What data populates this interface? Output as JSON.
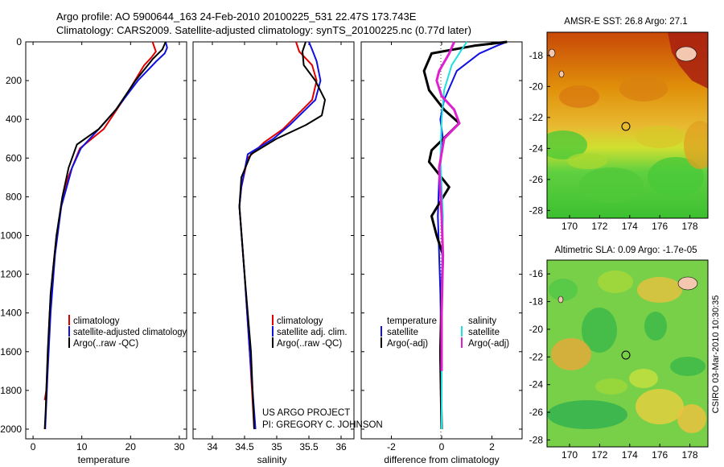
{
  "header": {
    "line1": "Argo profile: AO 5900644_163 24-Feb-2010 20100225_531 22.47S 173.743E",
    "line2": "Climatology: CARS2009. Satellite-adjusted climatology: synTS_20100225.nc (0.77d later)"
  },
  "colors": {
    "climatology": "#e00000",
    "satellite": "#1010e0",
    "argo": "#000000",
    "argo_adj": "#e020d0",
    "sal_satellite": "#20e0e0"
  },
  "chart_data": [
    {
      "type": "line",
      "title": "",
      "xlabel": "temperature",
      "ylabel": "",
      "xlim": [
        -1.5,
        31.5
      ],
      "ylim": [
        2050,
        0
      ],
      "xticks": [
        "0",
        "10",
        "20",
        "30"
      ],
      "yticks": [
        "0",
        "200",
        "400",
        "600",
        "800",
        "1000",
        "1200",
        "1400",
        "1600",
        "1800",
        "2000"
      ],
      "legend": [
        "climatology",
        "satellite-adjusted climatology",
        "Argo(..raw -QC)"
      ],
      "series": [
        {
          "name": "climatology",
          "x": [
            24.5,
            25.2,
            24.3,
            22.8,
            18.5,
            14.5,
            9.6,
            7.2,
            5.8,
            4.8,
            4.0,
            3.4,
            2.7,
            2.4
          ],
          "y": [
            0,
            50,
            80,
            120,
            300,
            450,
            550,
            700,
            850,
            1000,
            1200,
            1400,
            1800,
            1850
          ]
        },
        {
          "name": "satellite",
          "x": [
            27.2,
            27.5,
            27.0,
            25.3,
            21.5,
            17.0,
            13.5,
            9.8,
            8.0,
            5.8,
            4.5,
            3.6,
            3.0,
            2.5
          ],
          "y": [
            0,
            30,
            60,
            100,
            200,
            350,
            450,
            550,
            650,
            850,
            1100,
            1400,
            1700,
            2000
          ]
        },
        {
          "name": "argo",
          "x": [
            27.2,
            26.5,
            24.5,
            21.0,
            17.0,
            13.5,
            9.0,
            7.3,
            6.0,
            4.8,
            3.6,
            3.0,
            2.6,
            2.4
          ],
          "y": [
            0,
            40,
            90,
            200,
            350,
            450,
            530,
            650,
            800,
            1000,
            1300,
            1600,
            1900,
            2000
          ]
        }
      ]
    },
    {
      "type": "line",
      "title": "",
      "xlabel": "salinity",
      "ylabel": "",
      "xlim": [
        33.7,
        36.2
      ],
      "ylim": [
        2050,
        0
      ],
      "xticks": [
        "34",
        "34.5",
        "35",
        "35.5",
        "36"
      ],
      "legend": [
        "climatology",
        "satellite adj. clim.",
        "Argo(..raw -QC)"
      ],
      "series": [
        {
          "name": "climatology",
          "x": [
            35.3,
            35.35,
            35.55,
            35.62,
            35.55,
            35.1,
            34.8,
            34.55,
            34.45,
            34.42,
            34.5,
            34.58,
            34.65
          ],
          "y": [
            0,
            50,
            120,
            200,
            300,
            450,
            520,
            600,
            750,
            850,
            1200,
            1600,
            2000
          ]
        },
        {
          "name": "satellite",
          "x": [
            35.5,
            35.55,
            35.62,
            35.68,
            35.6,
            35.2,
            34.95,
            34.55,
            34.45,
            34.42,
            34.5,
            34.58,
            34.67
          ],
          "y": [
            0,
            40,
            100,
            200,
            300,
            430,
            500,
            580,
            750,
            850,
            1200,
            1600,
            2000
          ]
        },
        {
          "name": "argo",
          "x": [
            35.45,
            35.4,
            35.42,
            35.6,
            35.75,
            35.7,
            35.45,
            35.0,
            34.6,
            34.45,
            34.42,
            34.5,
            34.6,
            34.65
          ],
          "y": [
            0,
            50,
            120,
            200,
            300,
            380,
            430,
            500,
            580,
            700,
            850,
            1200,
            1600,
            2000
          ]
        }
      ]
    },
    {
      "type": "line",
      "title": "",
      "xlabel": "difference from climatology",
      "ylabel": "",
      "xlim": [
        -3.2,
        3.2
      ],
      "ylim": [
        2050,
        0
      ],
      "xticks": [
        "-2",
        "0",
        "2"
      ],
      "legend": [
        "temperature",
        "satellite",
        "Argo(-adj)",
        "salinity",
        "satellite",
        "Argo(-adj)"
      ],
      "series": [
        {
          "name": "temp satellite",
          "x": [
            2.6,
            2.2,
            1.5,
            0.6,
            0.1,
            -0.05,
            0.05,
            -0.1,
            -0.15,
            -0.1,
            -0.05,
            0.0,
            0.0
          ],
          "y": [
            0,
            20,
            60,
            150,
            300,
            400,
            500,
            700,
            900,
            1100,
            1300,
            1700,
            2000
          ]
        },
        {
          "name": "temp Argo(-adj)",
          "x": [
            2.6,
            1.3,
            -0.4,
            -0.7,
            -0.5,
            0.1,
            0.7,
            -0.4,
            -0.5,
            0.3,
            -0.4,
            -0.2,
            0.05,
            0.0,
            -0.05,
            0.0
          ],
          "y": [
            0,
            20,
            60,
            150,
            250,
            350,
            420,
            560,
            620,
            750,
            900,
            1000,
            1100,
            1300,
            1600,
            2000
          ]
        },
        {
          "name": "sal satellite",
          "x": [
            1.0,
            0.8,
            0.4,
            0.1,
            0.0,
            -0.05,
            0.05,
            0.0,
            0.0
          ],
          "y": [
            0,
            40,
            120,
            250,
            400,
            600,
            900,
            1300,
            2000
          ]
        },
        {
          "name": "sal Argo(-adj)",
          "x": [
            0.5,
            0.3,
            -0.1,
            -0.2,
            0.0,
            0.5,
            0.7,
            0.1,
            -0.1,
            0.0,
            0.05,
            0.0,
            0.0
          ],
          "y": [
            0,
            60,
            150,
            200,
            280,
            350,
            420,
            500,
            650,
            900,
            1100,
            1400,
            1700
          ]
        }
      ]
    },
    {
      "type": "heatmap",
      "title": "AMSR-E SST: 26.8 Argo: 27.1",
      "xticks": [
        "170",
        "172",
        "174",
        "176",
        "178"
      ],
      "yticks": [
        "-18",
        "-20",
        "-22",
        "-24",
        "-26",
        "-28"
      ],
      "xlim": [
        168.5,
        179.2
      ],
      "ylim": [
        -28.5,
        -16.5
      ],
      "float_position": [
        173.743,
        -22.47
      ]
    },
    {
      "type": "heatmap",
      "title": "Altimetric SLA: 0.09 Argo: -1.7e-05",
      "xticks": [
        "170",
        "172",
        "174",
        "176",
        "178"
      ],
      "yticks": [
        "-16",
        "-18",
        "-20",
        "-22",
        "-24",
        "-26",
        "-28"
      ],
      "xlim": [
        168.5,
        179.2
      ],
      "ylim": [
        -28.5,
        -15.0
      ],
      "float_position": [
        173.743,
        -22.47
      ]
    }
  ],
  "annotations": {
    "project": "US ARGO PROJECT",
    "pi": "PI: GREGORY C. JOHNSON",
    "stamp": "CSIRO 03-Mar-2010 10:30:35"
  }
}
